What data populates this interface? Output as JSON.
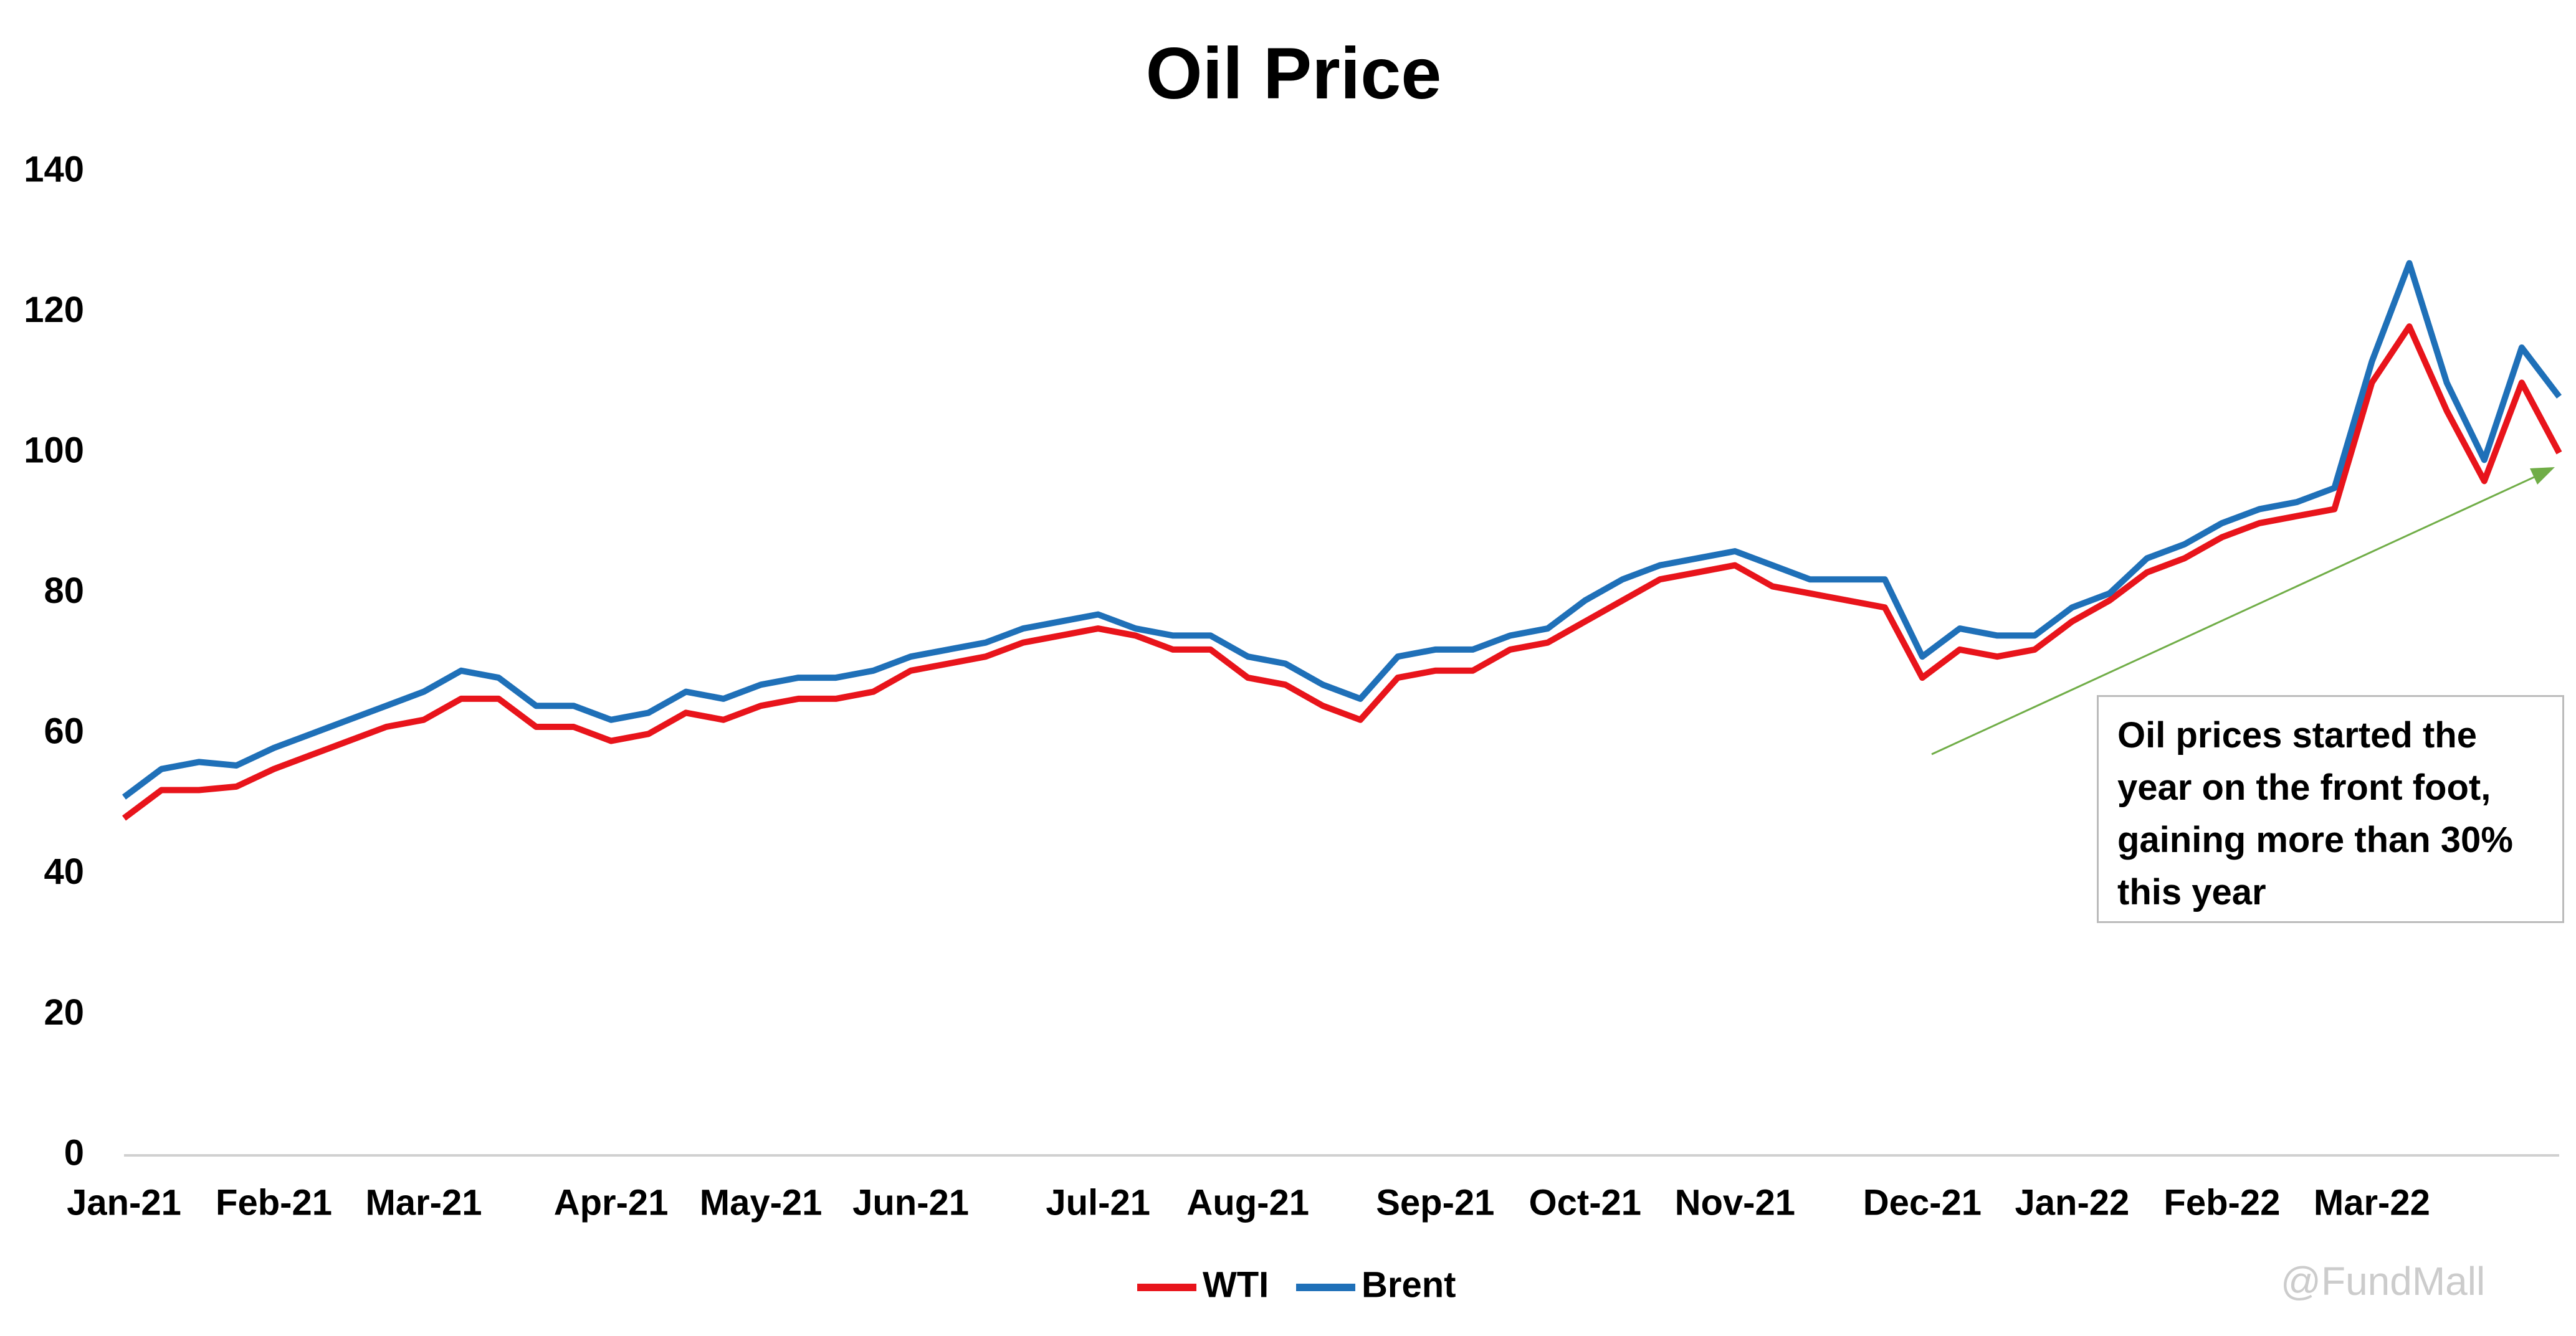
{
  "chart_data": {
    "type": "line",
    "title": "Oil Price",
    "categories": [
      "Jan-21",
      null,
      null,
      null,
      "Feb-21",
      null,
      null,
      null,
      "Mar-21",
      null,
      null,
      null,
      null,
      "Apr-21",
      null,
      null,
      null,
      "May-21",
      null,
      null,
      null,
      "Jun-21",
      null,
      null,
      null,
      null,
      "Jul-21",
      null,
      null,
      null,
      "Aug-21",
      null,
      null,
      null,
      null,
      "Sep-21",
      null,
      null,
      null,
      "Oct-21",
      null,
      null,
      null,
      "Nov-21",
      null,
      null,
      null,
      null,
      "Dec-21",
      null,
      null,
      null,
      "Jan-22",
      null,
      null,
      null,
      "Feb-22",
      null,
      null,
      null,
      "Mar-22",
      null,
      null,
      null,
      null,
      null
    ],
    "series": [
      {
        "name": "WTI",
        "color": "#e8141b",
        "values": [
          48,
          52,
          52,
          52.5,
          55,
          57,
          59,
          61,
          62,
          65,
          65,
          61,
          61,
          59,
          60,
          63,
          62,
          64,
          65,
          65,
          66,
          69,
          70,
          71,
          73,
          74,
          75,
          74,
          72,
          72,
          68,
          67,
          64,
          62,
          68,
          69,
          69,
          72,
          73,
          76,
          79,
          82,
          83,
          84,
          81,
          80,
          79,
          78,
          68,
          72,
          71,
          72,
          76,
          79,
          83,
          85,
          88,
          90,
          91,
          92,
          110,
          118,
          106,
          96,
          110,
          100
        ]
      },
      {
        "name": "Brent",
        "color": "#1f70b8",
        "values": [
          51,
          55,
          56,
          55.5,
          58,
          60,
          62,
          64,
          66,
          69,
          68,
          64,
          64,
          62,
          63,
          66,
          65,
          67,
          68,
          68,
          69,
          71,
          72,
          73,
          75,
          76,
          77,
          75,
          74,
          74,
          71,
          70,
          67,
          65,
          71,
          72,
          72,
          74,
          75,
          79,
          82,
          84,
          85,
          86,
          84,
          82,
          82,
          82,
          71,
          75,
          74,
          74,
          78,
          80,
          85,
          87,
          90,
          92,
          93,
          95,
          113,
          127,
          110,
          99,
          115,
          108
        ]
      }
    ],
    "ylim": [
      0,
      140
    ],
    "yticks": [
      0,
      20,
      40,
      60,
      80,
      100,
      120,
      140
    ],
    "grid": false,
    "legend": "bottom",
    "annotation": "Oil prices started the year on the front foot, gaining more than 30% this year",
    "watermark": "@FundMall"
  }
}
